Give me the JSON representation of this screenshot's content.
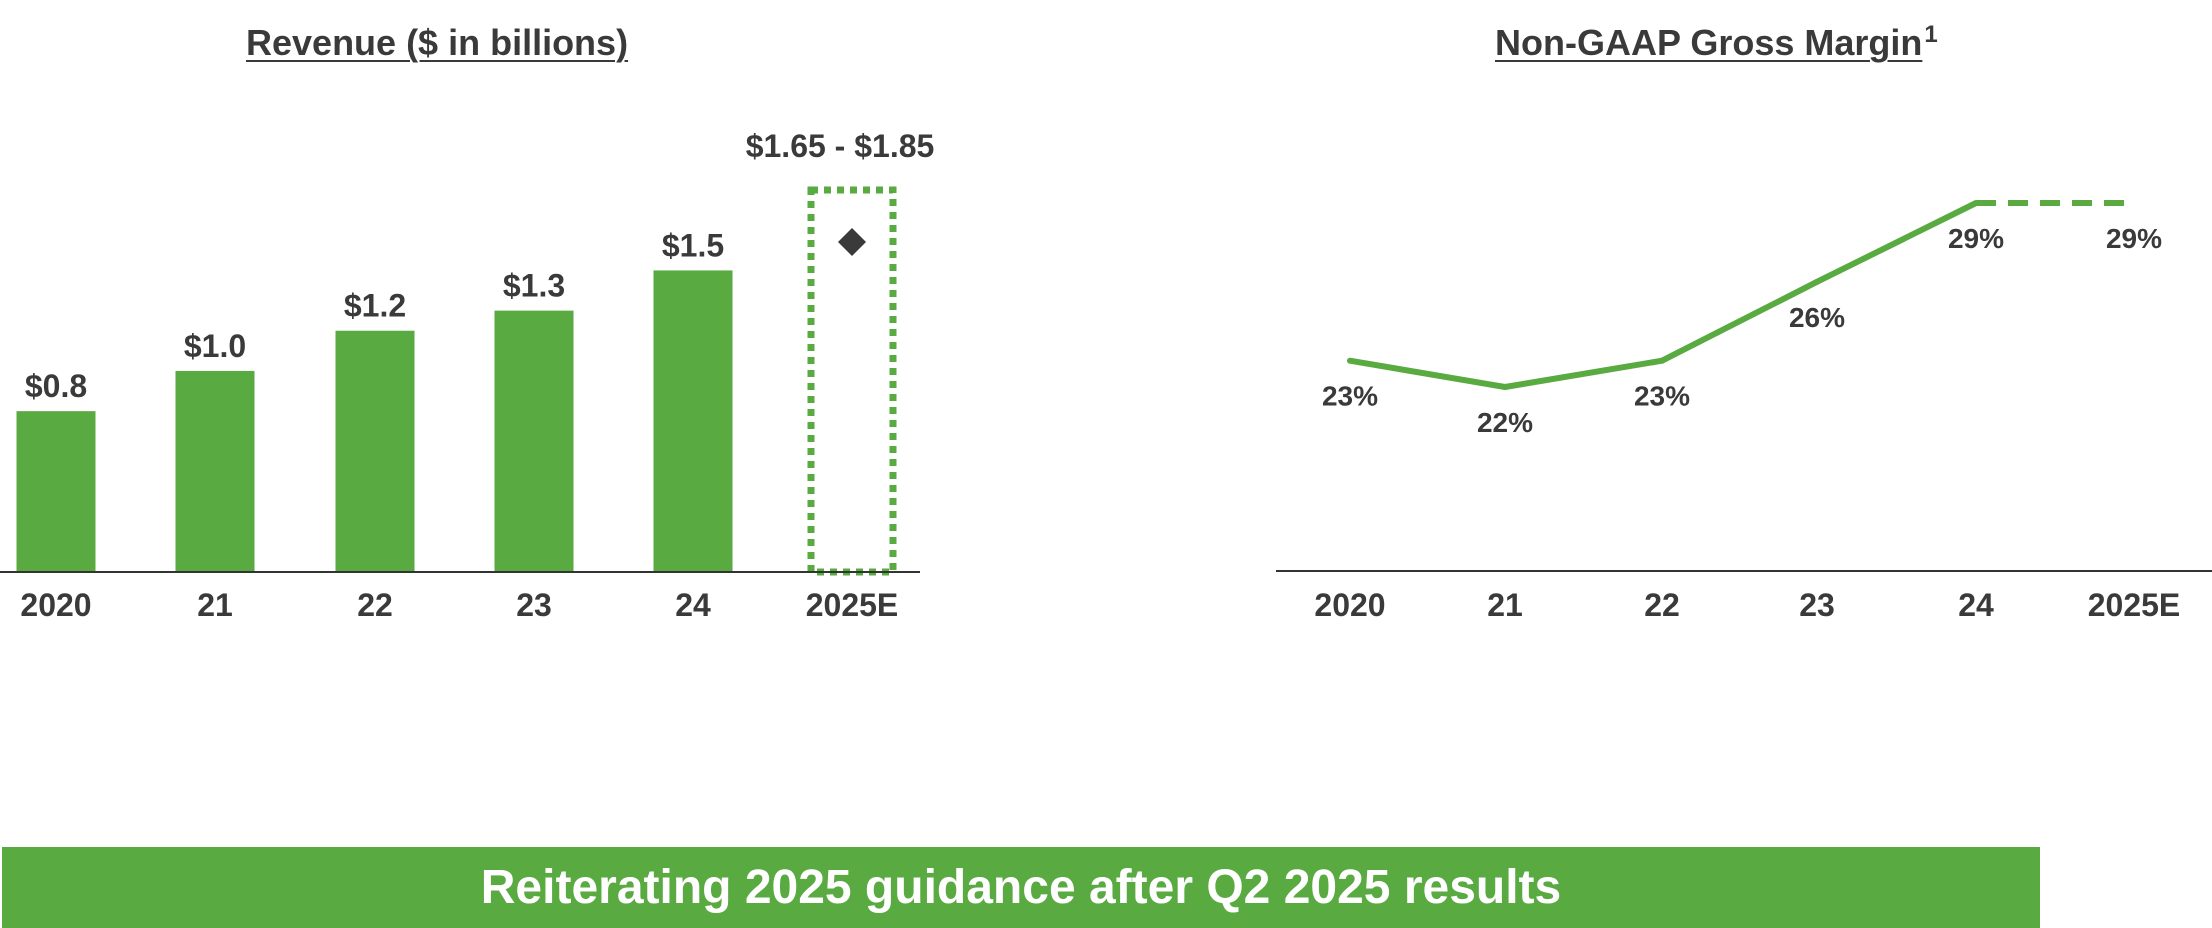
{
  "colors": {
    "bar": "#5aaa42",
    "line": "#5aaa42",
    "text": "#3a3a3a",
    "banner_bg": "#5aaa42",
    "banner_text": "#ffffff"
  },
  "chart_data": [
    {
      "type": "bar",
      "title": "Revenue ($ in billions)",
      "categories": [
        "2020",
        "21",
        "22",
        "23",
        "24",
        "2025E"
      ],
      "values": [
        0.8,
        1.0,
        1.2,
        1.3,
        1.5,
        null
      ],
      "data_labels": [
        "$0.8",
        "$1.0",
        "$1.2",
        "$1.3",
        "$1.5",
        "$1.65 - $1.85"
      ],
      "guidance": {
        "category": "2025E",
        "low": 1.65,
        "high": 1.85,
        "midpoint": 1.75,
        "label": "$1.65 - $1.85"
      },
      "ylim": [
        0,
        1.9
      ],
      "grid": false,
      "xlabel": "",
      "ylabel": ""
    },
    {
      "type": "line",
      "title": "Non-GAAP Gross Margin",
      "title_superscript": "1",
      "categories": [
        "2020",
        "21",
        "22",
        "23",
        "24",
        "2025E"
      ],
      "values": [
        23,
        22,
        23,
        26,
        29,
        29
      ],
      "data_labels": [
        "23%",
        "22%",
        "23%",
        "26%",
        "29%",
        "29%"
      ],
      "projected_from_index": 4,
      "ylim": [
        10,
        30
      ],
      "grid": false,
      "xlabel": "",
      "ylabel": ""
    }
  ],
  "banner": {
    "text": "Reiterating 2025 guidance after Q2 2025 results"
  }
}
